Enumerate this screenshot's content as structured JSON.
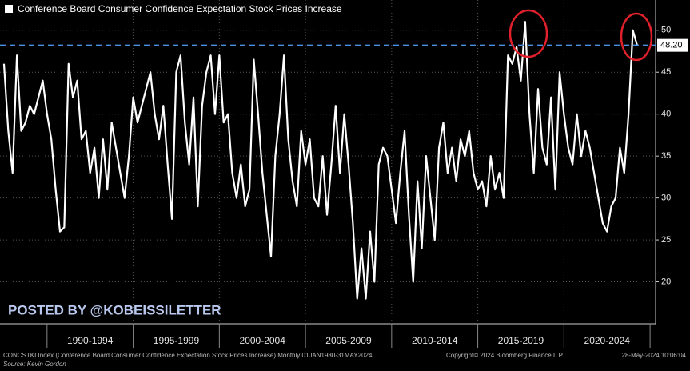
{
  "chart_data": {
    "type": "line",
    "x": [
      1987.5,
      1987.75,
      1988,
      1988.25,
      1988.5,
      1988.75,
      1989,
      1989.25,
      1989.5,
      1989.75,
      1990,
      1990.25,
      1990.5,
      1990.75,
      1991,
      1991.25,
      1991.5,
      1991.75,
      1992,
      1992.25,
      1992.5,
      1992.75,
      1993,
      1993.25,
      1993.5,
      1993.75,
      1994,
      1994.25,
      1994.5,
      1994.75,
      1995,
      1995.25,
      1995.5,
      1995.75,
      1996,
      1996.25,
      1996.5,
      1996.75,
      1997,
      1997.25,
      1997.5,
      1997.75,
      1998,
      1998.25,
      1998.5,
      1998.75,
      1999,
      1999.25,
      1999.5,
      1999.75,
      2000,
      2000.25,
      2000.5,
      2000.75,
      2001,
      2001.25,
      2001.5,
      2001.75,
      2002,
      2002.25,
      2002.5,
      2002.75,
      2003,
      2003.25,
      2003.5,
      2003.75,
      2004,
      2004.25,
      2004.5,
      2004.75,
      2005,
      2005.25,
      2005.5,
      2005.75,
      2006,
      2006.25,
      2006.5,
      2006.75,
      2007,
      2007.25,
      2007.5,
      2007.75,
      2008,
      2008.25,
      2008.5,
      2008.75,
      2009,
      2009.25,
      2009.5,
      2009.75,
      2010,
      2010.25,
      2010.5,
      2010.75,
      2011,
      2011.25,
      2011.5,
      2011.75,
      2012,
      2012.25,
      2012.5,
      2012.75,
      2013,
      2013.25,
      2013.5,
      2013.75,
      2014,
      2014.25,
      2014.5,
      2014.75,
      2015,
      2015.25,
      2015.5,
      2015.75,
      2016,
      2016.25,
      2016.5,
      2016.75,
      2017,
      2017.25,
      2017.5,
      2017.75,
      2018,
      2018.25,
      2018.5,
      2018.75,
      2019,
      2019.25,
      2019.5,
      2019.75,
      2020,
      2020.25,
      2020.5,
      2020.75,
      2021,
      2021.25,
      2021.5,
      2021.75,
      2022,
      2022.25,
      2022.5,
      2022.75,
      2023,
      2023.25,
      2023.5,
      2023.75,
      2024,
      2024.25
    ],
    "series": [
      {
        "name": "Conference Board Consumer Confidence Expectation Stock Prices Increase",
        "color": "#ffffff",
        "values": [
          46,
          38,
          33,
          47,
          38,
          39,
          41,
          40,
          42,
          44,
          40,
          37,
          31,
          26,
          26.5,
          46,
          42,
          44,
          37,
          38,
          33,
          36,
          30,
          37,
          31,
          39,
          36,
          33,
          30,
          35,
          42,
          39,
          41,
          43,
          45,
          40,
          37,
          41,
          34,
          27.5,
          45,
          47,
          39,
          34,
          42,
          29,
          41,
          45,
          47,
          40,
          47,
          39,
          40,
          33,
          30,
          34,
          29,
          31,
          46.5,
          40,
          33,
          28,
          23,
          35,
          40,
          47,
          37,
          32,
          29,
          38,
          34,
          37,
          30,
          29,
          35,
          28,
          34,
          41,
          33,
          40,
          34,
          27,
          18,
          24,
          18,
          26,
          20,
          34,
          36,
          35,
          31,
          27,
          33,
          38,
          28,
          20,
          32,
          24,
          35,
          30,
          25,
          36,
          39,
          33,
          36,
          32,
          37,
          35,
          38,
          33,
          31,
          32,
          29,
          35,
          31,
          33,
          30,
          47,
          46,
          48,
          44,
          51,
          40,
          33,
          43,
          36,
          34,
          42,
          31,
          45,
          40,
          36,
          34,
          40,
          35,
          38,
          36,
          33,
          30,
          27,
          26,
          29,
          30,
          36,
          33,
          40,
          50,
          48.2
        ]
      }
    ],
    "last_value": {
      "value": 48.2,
      "label": "48.20",
      "color": "#4a90e2"
    },
    "xlim": [
      1987.27,
      2025.32
    ],
    "xticks": [
      {
        "value": 1992.5,
        "label": "1990-1994"
      },
      {
        "value": 1997.5,
        "label": "1995-1999"
      },
      {
        "value": 2002.5,
        "label": "2000-2004"
      },
      {
        "value": 2007.5,
        "label": "2005-2009"
      },
      {
        "value": 2012.5,
        "label": "2010-2014"
      },
      {
        "value": 2017.5,
        "label": "2015-2019"
      },
      {
        "value": 2022.5,
        "label": "2020-2024"
      }
    ],
    "ylim": [
      15,
      53.6
    ],
    "yticks": [
      20,
      25,
      30,
      35,
      40,
      45,
      50
    ],
    "grid": true,
    "watermark": "POSTED BY @KOBEISSILETTER",
    "footer_left": "CONCSTKI Index (Conference Board Consumer Confidence Expectation Stock Prices Increase)  Monthly 01JAN1980-31MAY2024",
    "footer_copyright": "Copyright© 2024 Bloomberg Finance L.P.",
    "footer_date": "28-May-2024 10:06:04",
    "source": "Source: Kevin Gordon"
  }
}
